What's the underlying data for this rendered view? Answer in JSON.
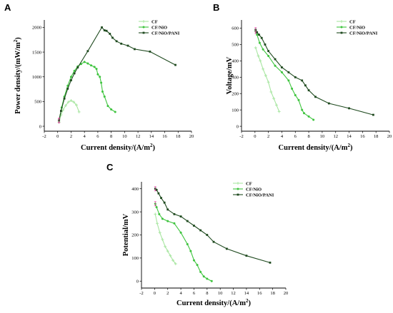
{
  "chart_data": [
    {
      "panel": "A",
      "type": "line",
      "xlabel": "Current density/(A/m²)",
      "ylabel": "Power density/(mW/m²)",
      "xlim": [
        -2,
        20
      ],
      "ylim": [
        -100,
        2150
      ],
      "xticks": [
        -2,
        0,
        2,
        4,
        6,
        8,
        10,
        12,
        14,
        16,
        18,
        20
      ],
      "yticks": [
        0,
        500,
        1000,
        1500,
        2000
      ],
      "legend_position": "top-right",
      "series": [
        {
          "name": "CF",
          "color": "#a8e6a1",
          "marker": "plus",
          "x": [
            0.2,
            0.5,
            0.8,
            1.2,
            1.6,
            2.0,
            2.4,
            2.8,
            3.2
          ],
          "y": [
            80,
            230,
            330,
            420,
            490,
            520,
            490,
            430,
            290
          ]
        },
        {
          "name": "CF/NiO",
          "color": "#3ec43e",
          "marker": "circle",
          "x": [
            0.2,
            0.6,
            1.0,
            1.5,
            2.0,
            2.5,
            3.0,
            3.5,
            4.0,
            4.5,
            5.0,
            5.5,
            5.8,
            6.0,
            6.3,
            6.5,
            6.7,
            7.0,
            7.5,
            8.0,
            8.6
          ],
          "y": [
            110,
            380,
            600,
            820,
            1000,
            1120,
            1210,
            1260,
            1300,
            1270,
            1230,
            1200,
            1160,
            1050,
            1000,
            880,
            700,
            600,
            410,
            340,
            290
          ]
        },
        {
          "name": "CF/NiO/PANI",
          "color": "#1f4a1f",
          "marker": "square",
          "x": [
            0.2,
            0.5,
            1.0,
            1.5,
            2.0,
            2.5,
            3.0,
            4.5,
            6.6,
            7.0,
            7.3,
            7.8,
            8.2,
            8.8,
            9.5,
            10.5,
            11.5,
            13.8,
            17.6
          ],
          "y": [
            120,
            310,
            560,
            760,
            930,
            1070,
            1190,
            1520,
            2000,
            1940,
            1930,
            1870,
            1790,
            1720,
            1670,
            1630,
            1560,
            1510,
            1240
          ]
        }
      ]
    },
    {
      "panel": "B",
      "type": "line",
      "xlabel": "Current density/(A/m²)",
      "ylabel": "Voltage/mV",
      "xlim": [
        -2,
        20
      ],
      "ylim": [
        -30,
        650
      ],
      "xticks": [
        -2,
        0,
        2,
        4,
        6,
        8,
        10,
        12,
        14,
        16,
        18,
        20
      ],
      "yticks": [
        0,
        100,
        200,
        300,
        400,
        500,
        600
      ],
      "legend_position": "top-right",
      "series": [
        {
          "name": "CF",
          "color": "#a8e6a1",
          "marker": "plus",
          "x": [
            0.1,
            0.5,
            0.8,
            1.2,
            1.6,
            2.0,
            2.4,
            2.8,
            3.2,
            3.6
          ],
          "y": [
            480,
            430,
            400,
            350,
            310,
            270,
            210,
            170,
            130,
            90
          ]
        },
        {
          "name": "CF/NiO",
          "color": "#3ec43e",
          "marker": "circle",
          "x": [
            0.1,
            0.3,
            0.7,
            1.2,
            2.0,
            3.0,
            4.0,
            5.0,
            5.5,
            6.0,
            6.5,
            7.0,
            7.3,
            8.0,
            8.7
          ],
          "y": [
            580,
            560,
            510,
            470,
            430,
            370,
            330,
            280,
            230,
            190,
            160,
            100,
            80,
            60,
            40
          ]
        },
        {
          "name": "CF/NiO/PANI",
          "color": "#1f4a1f",
          "marker": "square",
          "x": [
            0.1,
            0.3,
            0.6,
            1.0,
            1.5,
            2.0,
            3.0,
            4.0,
            5.0,
            6.0,
            7.0,
            7.5,
            8.0,
            9.0,
            11.0,
            14.0,
            17.6
          ],
          "y": [
            590,
            575,
            560,
            540,
            500,
            460,
            410,
            360,
            330,
            300,
            280,
            250,
            220,
            180,
            140,
            110,
            70
          ]
        }
      ]
    },
    {
      "panel": "C",
      "type": "line",
      "xlabel": "Current density/(A/m²)",
      "ylabel": "Potential/mV",
      "xlim": [
        -2,
        20
      ],
      "ylim": [
        -30,
        430
      ],
      "xticks": [
        -2,
        0,
        2,
        4,
        6,
        8,
        10,
        12,
        14,
        16,
        18,
        20
      ],
      "yticks": [
        0,
        100,
        200,
        300,
        400
      ],
      "legend_position": "top-right",
      "series": [
        {
          "name": "CF",
          "color": "#a8e6a1",
          "marker": "plus",
          "x": [
            0.1,
            0.4,
            0.8,
            1.2,
            1.6,
            2.0,
            2.4,
            2.8,
            3.2
          ],
          "y": [
            290,
            250,
            210,
            180,
            150,
            130,
            110,
            90,
            75
          ]
        },
        {
          "name": "CF/NiO",
          "color": "#3ec43e",
          "marker": "circle",
          "x": [
            0.1,
            0.3,
            0.7,
            1.2,
            2.0,
            3.0,
            4.0,
            5.0,
            5.5,
            6.0,
            6.5,
            7.0,
            7.5,
            8.0,
            8.7
          ],
          "y": [
            335,
            320,
            290,
            270,
            260,
            250,
            210,
            160,
            130,
            90,
            70,
            40,
            20,
            10,
            0
          ]
        },
        {
          "name": "CF/NiO/PANI",
          "color": "#1f4a1f",
          "marker": "square",
          "x": [
            0.1,
            0.3,
            0.6,
            1.0,
            1.5,
            2.0,
            3.0,
            4.0,
            5.0,
            6.0,
            7.0,
            8.0,
            9.0,
            11.0,
            14.0,
            17.6
          ],
          "y": [
            400,
            395,
            380,
            360,
            340,
            310,
            290,
            280,
            260,
            240,
            220,
            200,
            170,
            140,
            110,
            80
          ]
        }
      ]
    }
  ]
}
